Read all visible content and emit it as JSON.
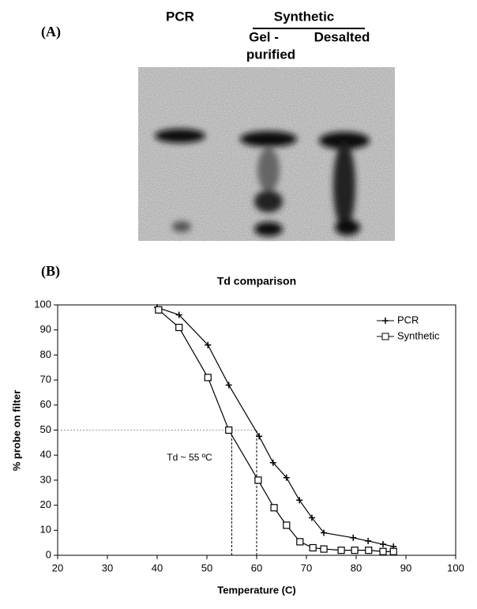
{
  "panel_a": {
    "label": "(A)",
    "lanes": {
      "pcr": "PCR",
      "group": "Synthetic",
      "gel_line1": "Gel -",
      "gel_line2": "purified",
      "desalted": "Desalted"
    }
  },
  "chart_data": {
    "type": "line",
    "panel_label": "(B)",
    "title": "Td comparison",
    "x_label": "Temperature (C)",
    "y_label": "% probe on filter",
    "annotation": "Td ~ 55 ºC",
    "guides": {
      "y": 50,
      "x": [
        55,
        60
      ]
    },
    "xlim": [
      20,
      100
    ],
    "xticks": [
      20,
      30,
      40,
      50,
      60,
      70,
      80,
      90,
      100
    ],
    "ylim": [
      0,
      100
    ],
    "yticks": [
      0,
      10,
      20,
      30,
      40,
      50,
      60,
      70,
      80,
      90,
      100
    ],
    "legend": "upper right",
    "series": [
      {
        "name": "PCR",
        "color": "#000000",
        "marker": "plus",
        "x": [
          40,
          44.4,
          50.2,
          54.4,
          60.5,
          63.3,
          66,
          68.6,
          71.1,
          73.5,
          79.4,
          82.4,
          85.4,
          87.5
        ],
        "values": [
          99,
          96,
          84,
          68,
          47.5,
          37,
          31,
          22,
          15,
          9,
          7,
          5.7,
          4.4,
          3.5
        ]
      },
      {
        "name": "Synthetic",
        "color": "#000000",
        "marker": "square",
        "x": [
          40.3,
          44.4,
          50.2,
          54.4,
          60.3,
          63.5,
          66,
          68.7,
          71.3,
          73.5,
          77,
          79.7,
          82.5,
          85.4,
          87.5
        ],
        "values": [
          98,
          91,
          71,
          50,
          30,
          19,
          12,
          5.4,
          3,
          2.5,
          2,
          2,
          2,
          1.5,
          1.5
        ]
      }
    ]
  }
}
